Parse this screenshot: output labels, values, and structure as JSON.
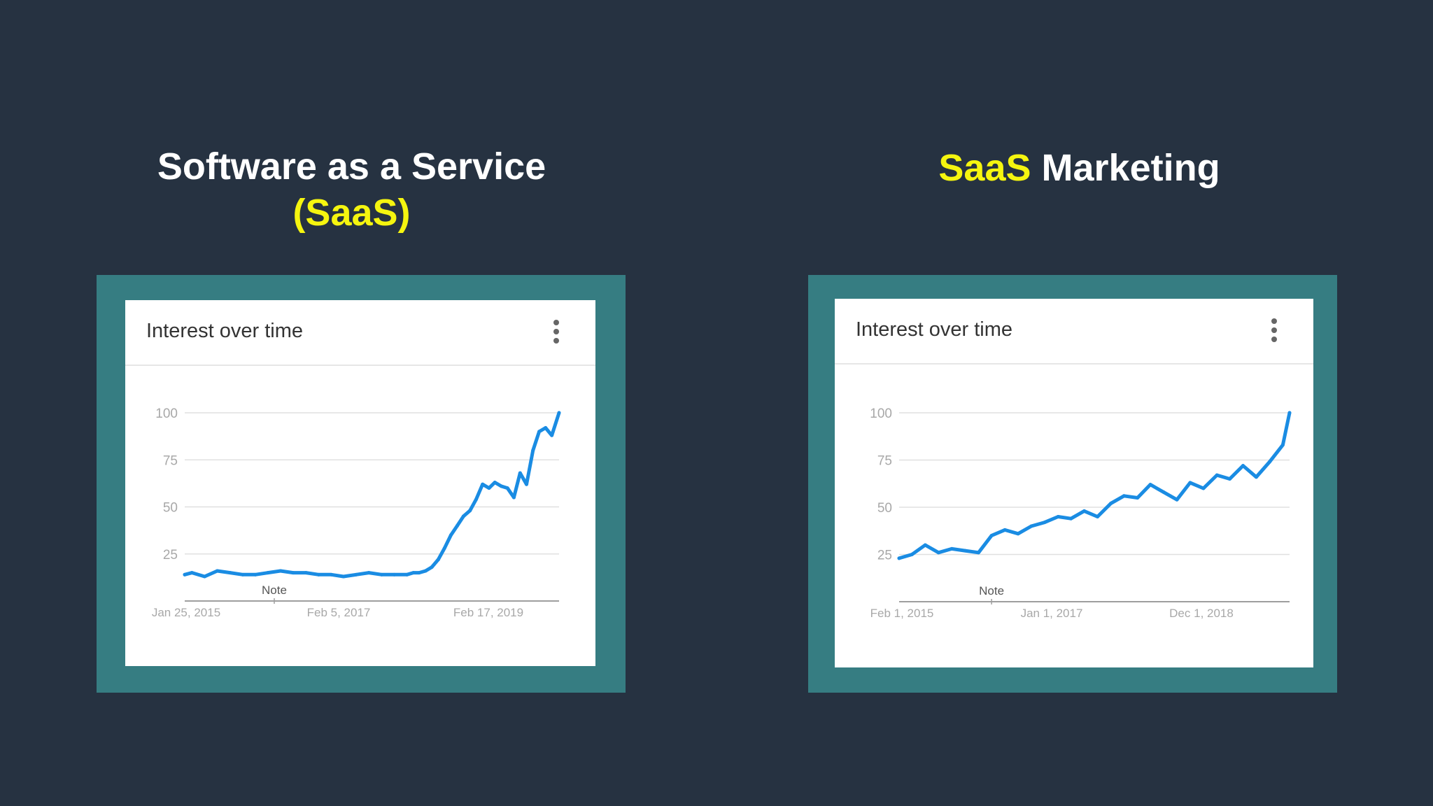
{
  "left": {
    "title_line1": "Software as a Service",
    "title_line2": "(SaaS)",
    "card_title": "Interest over time",
    "menu_icon": "more-vert-icon",
    "note_label": "Note"
  },
  "right": {
    "title_highlight": "SaaS",
    "title_rest": " Marketing",
    "card_title": "Interest over time",
    "menu_icon": "more-vert-icon",
    "note_label": "Note"
  },
  "colors": {
    "background": "#263241",
    "frame": "#367d82",
    "highlight": "#f5f50f",
    "line": "#1a8ce3"
  },
  "chart_data": [
    {
      "type": "line",
      "title": "Interest over time",
      "x_tick_labels": [
        "Jan 25, 2015",
        "Feb 5, 2017",
        "Feb 17, 2019"
      ],
      "x_range": [
        "2015-01-25",
        "2020-01-05"
      ],
      "ylim": [
        0,
        100
      ],
      "y_ticks": [
        25,
        50,
        75,
        100
      ],
      "grid": true,
      "annotations": [
        {
          "label": "Note",
          "x": "2016-04-01"
        }
      ],
      "x": [
        "2015-01-25",
        "2015-03-01",
        "2015-05-01",
        "2015-07-01",
        "2015-09-01",
        "2015-11-01",
        "2016-01-01",
        "2016-03-01",
        "2016-05-01",
        "2016-07-01",
        "2016-09-01",
        "2016-11-01",
        "2017-01-01",
        "2017-03-01",
        "2017-05-01",
        "2017-07-01",
        "2017-09-01",
        "2017-11-01",
        "2018-01-01",
        "2018-02-01",
        "2018-03-01",
        "2018-04-01",
        "2018-05-01",
        "2018-06-01",
        "2018-07-01",
        "2018-08-01",
        "2018-09-01",
        "2018-10-01",
        "2018-11-01",
        "2018-12-01",
        "2019-01-01",
        "2019-02-01",
        "2019-03-01",
        "2019-04-01",
        "2019-05-01",
        "2019-06-01",
        "2019-07-01",
        "2019-08-01",
        "2019-09-01",
        "2019-10-01",
        "2019-11-01",
        "2019-12-01",
        "2020-01-05"
      ],
      "values": [
        14,
        15,
        13,
        16,
        15,
        14,
        14,
        15,
        16,
        15,
        15,
        14,
        14,
        13,
        14,
        15,
        14,
        14,
        14,
        15,
        15,
        16,
        18,
        22,
        28,
        35,
        40,
        45,
        48,
        54,
        62,
        60,
        63,
        61,
        60,
        55,
        68,
        62,
        80,
        90,
        92,
        88,
        100
      ]
    },
    {
      "type": "line",
      "title": "Interest over time",
      "x_tick_labels": [
        "Feb 1, 2015",
        "Jan 1, 2017",
        "Dec 1, 2018"
      ],
      "x_range": [
        "2015-02-01",
        "2020-01-01"
      ],
      "ylim": [
        0,
        100
      ],
      "y_ticks": [
        25,
        50,
        75,
        100
      ],
      "grid": true,
      "annotations": [
        {
          "label": "Note",
          "x": "2016-04-01"
        }
      ],
      "x": [
        "2015-02-01",
        "2015-04-01",
        "2015-06-01",
        "2015-08-01",
        "2015-10-01",
        "2015-12-01",
        "2016-02-01",
        "2016-04-01",
        "2016-06-01",
        "2016-08-01",
        "2016-10-01",
        "2016-12-01",
        "2017-02-01",
        "2017-04-01",
        "2017-06-01",
        "2017-08-01",
        "2017-10-01",
        "2017-12-01",
        "2018-02-01",
        "2018-04-01",
        "2018-06-01",
        "2018-08-01",
        "2018-10-01",
        "2018-12-01",
        "2019-02-01",
        "2019-04-01",
        "2019-06-01",
        "2019-08-01",
        "2019-10-01",
        "2019-12-01",
        "2020-01-01"
      ],
      "values": [
        23,
        25,
        30,
        26,
        28,
        27,
        26,
        35,
        38,
        36,
        40,
        42,
        45,
        44,
        48,
        45,
        52,
        56,
        55,
        62,
        58,
        54,
        63,
        60,
        67,
        65,
        72,
        66,
        74,
        83,
        100
      ]
    }
  ]
}
